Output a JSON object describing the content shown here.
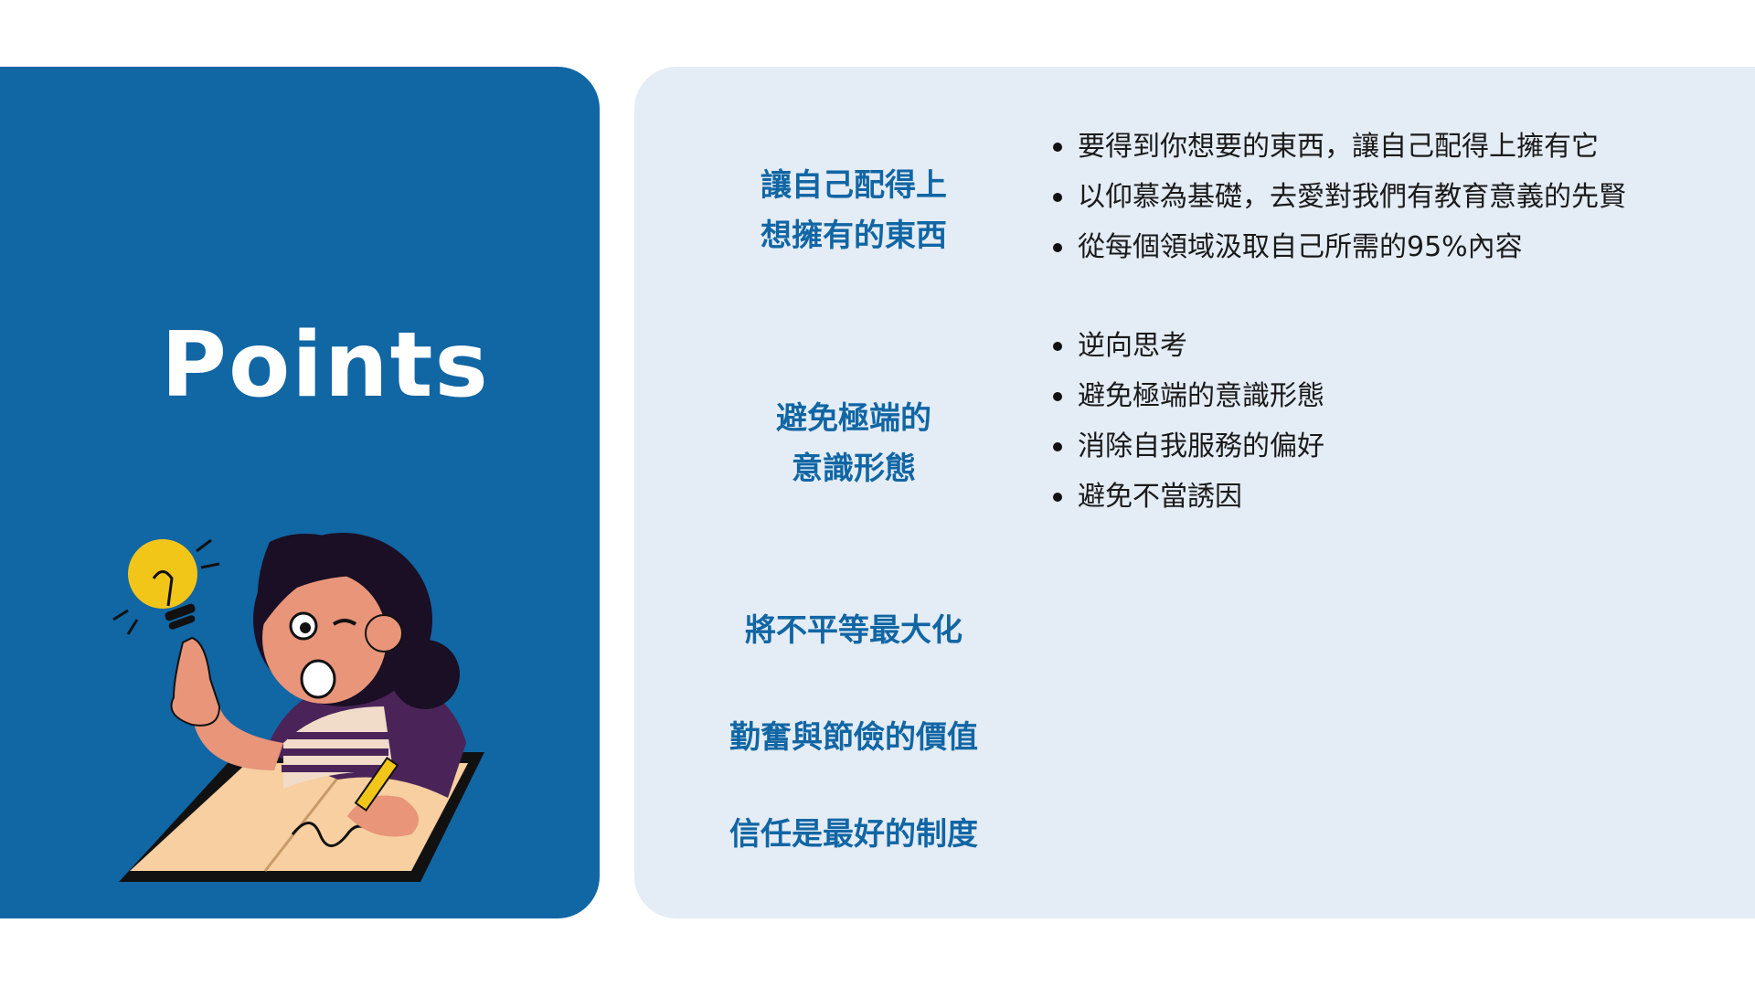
{
  "title": "Points",
  "topics": [
    {
      "lines": [
        "讓自己配得上",
        "想擁有的東西"
      ]
    },
    {
      "lines": [
        "避免極端的",
        "意識形態"
      ]
    },
    {
      "lines": [
        "將不平等最大化"
      ]
    },
    {
      "lines": [
        "勤奮與節儉的價值"
      ]
    },
    {
      "lines": [
        "信任是最好的制度"
      ]
    }
  ],
  "bullet_groups": [
    {
      "items": [
        "要得到你想要的東西，讓自己配得上擁有它",
        "以仰慕為基礎，去愛對我們有教育意義的先賢",
        "從每個領域汲取自己所需的95%內容"
      ]
    },
    {
      "items": [
        "逆向思考",
        "避免極端的意識形態",
        "消除自我服務的偏好",
        "避免不當誘因"
      ]
    }
  ],
  "colors": {
    "brand_blue": "#1166a4",
    "panel_light": "#e4ecf5",
    "bulb_yellow": "#f2c519",
    "shirt_purple": "#4a2459"
  },
  "illustration": "girl-with-lightbulb-writing-in-book"
}
